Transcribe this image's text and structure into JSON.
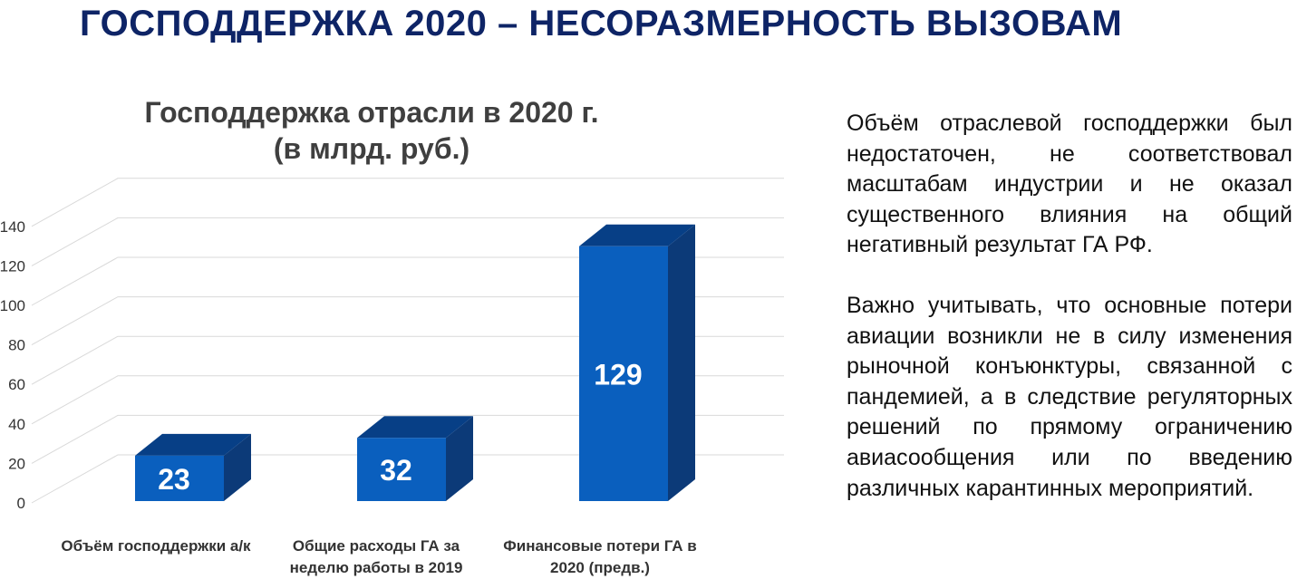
{
  "page": {
    "title": "ГОСПОДДЕРЖКА 2020 – НЕСОРАЗМЕРНОСТЬ ВЫЗОВАМ"
  },
  "chart_data": {
    "type": "bar",
    "title_lines": [
      "Господдержка отрасли в 2020 г.",
      "(в млрд. руб.)"
    ],
    "categories": [
      [
        "Объём господдержки а/к"
      ],
      [
        "Общие расходы ГА за",
        "неделю работы в 2019"
      ],
      [
        "Финансовые потери ГА в",
        "2020 (предв.)"
      ]
    ],
    "values": [
      23,
      32,
      129
    ],
    "data_labels": [
      "23",
      "32",
      "129"
    ],
    "yticks": [
      "0",
      "20",
      "40",
      "60",
      "80",
      "100",
      "120",
      "140"
    ],
    "ylim": [
      0,
      140
    ],
    "grid": true,
    "three_d": true,
    "colors": {
      "bar_front": "#0a5fbe",
      "bar_top": "#073f86",
      "bar_side": "#0c3a78",
      "grid": "#d9d9d9"
    }
  },
  "text": {
    "paragraph_1": "Объём отраслевой господдержки был недостаточен, не соответствовал масштабам индустрии и не оказал существенного влияния на общий негативный результат ГА РФ.",
    "paragraph_2": "Важно учитывать, что основные потери авиации возникли не в силу изменения рыночной конъюнктуры, связанной с пандемией, а в следствие регуляторных решений по прямому ограничению авиасообщения или по введению различных карантинных мероприятий."
  }
}
